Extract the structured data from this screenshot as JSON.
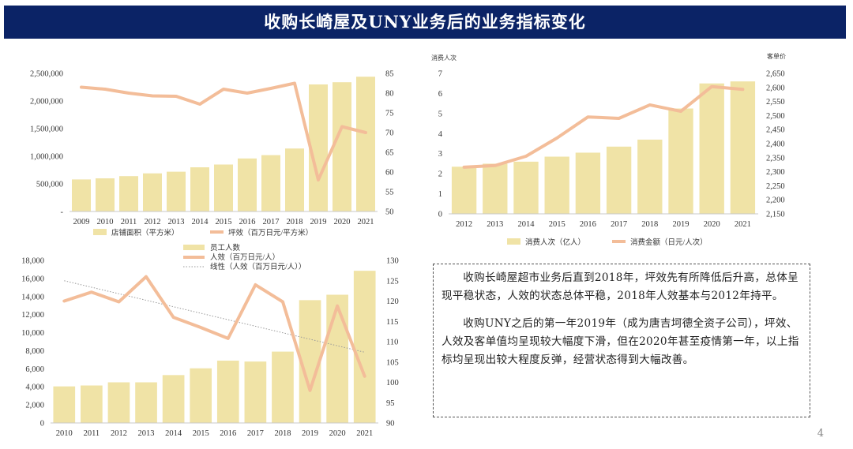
{
  "title": "收购长崎屋及UNY业务后的业务指标变化",
  "page_number": "4",
  "colors": {
    "bar": "#f0e3a6",
    "line": "#f3bd99",
    "trend": "#9a9a9a",
    "banner": "#0b2366"
  },
  "notes": [
    "收购长崎屋超市业务后直到2018年，坪效先有所降低后升高，总体呈现平稳状态，人效的状态总体平稳，2018年人效基本与2012年持平。",
    "收购UNY之后的第一年2019年（成为唐吉坷德全资子公司），坪效、人效及客单值均呈现较大幅度下滑，但在2020年甚至疫情第一年，以上指标均呈现出较大程度反弹，经营状态得到大幅改善。"
  ],
  "chart_data": [
    {
      "type": "bar+line",
      "categories": [
        "2009",
        "2010",
        "2011",
        "2012",
        "2013",
        "2014",
        "2015",
        "2016",
        "2017",
        "2018",
        "2019",
        "2020",
        "2021"
      ],
      "series": [
        {
          "name": "店铺面积（平方米）",
          "kind": "bar",
          "axis": "left",
          "values": [
            580000,
            600000,
            640000,
            690000,
            720000,
            800000,
            850000,
            960000,
            1020000,
            1140000,
            2300000,
            2340000,
            2440000
          ]
        },
        {
          "name": "坪效（百万日元/平方米）",
          "kind": "line",
          "axis": "right",
          "values": [
            81.5,
            81,
            80,
            79.3,
            79.2,
            77.2,
            81,
            80,
            81.2,
            82.5,
            58,
            71.5,
            70
          ]
        }
      ],
      "y_left": {
        "min": 0,
        "max": 2500000,
        "ticks": [
          0,
          500000,
          1000000,
          1500000,
          2000000,
          2500000
        ],
        "tick_labels": [
          "-",
          "500,000",
          "1,000,000",
          "1,500,000",
          "2,000,000",
          "2,500,000"
        ]
      },
      "y_right": {
        "min": 50,
        "max": 85,
        "ticks": [
          50,
          55,
          60,
          65,
          70,
          75,
          80,
          85
        ],
        "tick_labels": [
          "50",
          "55",
          "60",
          "65",
          "70",
          "75",
          "80",
          "85"
        ]
      },
      "legend": [
        "店铺面积（平方米）",
        "坪效（百万日元/平方米）"
      ],
      "legend_position": "bottom"
    },
    {
      "type": "bar+line",
      "categories": [
        "2012",
        "2013",
        "2014",
        "2015",
        "2016",
        "2017",
        "2018",
        "2019",
        "2020",
        "2021"
      ],
      "series": [
        {
          "name": "消费人次（亿人）",
          "kind": "bar",
          "axis": "left",
          "values": [
            2.35,
            2.5,
            2.6,
            2.85,
            3.05,
            3.35,
            3.7,
            5.25,
            6.5,
            6.6
          ]
        },
        {
          "name": "消费金额（日元/人次）",
          "kind": "line",
          "axis": "right",
          "values": [
            2316,
            2322,
            2355,
            2420,
            2495,
            2490,
            2538,
            2515,
            2603,
            2593
          ]
        }
      ],
      "y_left_title": "消费人次",
      "y_right_title": "客单价",
      "y_left": {
        "min": 0,
        "max": 7,
        "ticks": [
          0,
          1,
          2,
          3,
          4,
          5,
          6,
          7
        ],
        "tick_labels": [
          "0",
          "1",
          "2",
          "3",
          "4",
          "5",
          "6",
          "7"
        ]
      },
      "y_right": {
        "min": 2150,
        "max": 2650,
        "ticks": [
          2150,
          2200,
          2250,
          2300,
          2350,
          2400,
          2450,
          2500,
          2550,
          2600,
          2650
        ],
        "tick_labels": [
          "2,150",
          "2,200",
          "2,250",
          "2,300",
          "2,350",
          "2,400",
          "2,450",
          "2,500",
          "2,550",
          "2,600",
          "2,650"
        ]
      },
      "legend": [
        "消费人次（亿人）",
        "消费金额（日元/人次）"
      ],
      "legend_position": "bottom"
    },
    {
      "type": "bar+line",
      "categories": [
        "2010",
        "2011",
        "2012",
        "2013",
        "2014",
        "2015",
        "2016",
        "2017",
        "2018",
        "2019",
        "2020",
        "2021"
      ],
      "series": [
        {
          "name": "员工人数",
          "kind": "bar",
          "axis": "left",
          "values": [
            4050,
            4150,
            4500,
            4500,
            5300,
            6050,
            6900,
            6800,
            7900,
            13600,
            14200,
            16850
          ]
        },
        {
          "name": "人效（百万日元/人）",
          "kind": "line",
          "axis": "right",
          "values": [
            120,
            122.2,
            119.8,
            126,
            116,
            113.5,
            110.8,
            124,
            119.8,
            98,
            118.8,
            101.5
          ]
        },
        {
          "name": "线性（人效（百万日元/人））",
          "kind": "trend",
          "axis": "right",
          "values": [
            125,
            123.4,
            121.8,
            120.2,
            118.6,
            117,
            115.4,
            113.8,
            112.2,
            110.6,
            109,
            107.4
          ]
        }
      ],
      "y_left": {
        "min": 0,
        "max": 18000,
        "ticks": [
          0,
          2000,
          4000,
          6000,
          8000,
          10000,
          12000,
          14000,
          16000,
          18000
        ],
        "tick_labels": [
          "0",
          "2,000",
          "4,000",
          "6,000",
          "8,000",
          "10,000",
          "12,000",
          "14,000",
          "16,000",
          "18,000"
        ]
      },
      "y_right": {
        "min": 90,
        "max": 130,
        "ticks": [
          90,
          95,
          100,
          105,
          110,
          115,
          120,
          125,
          130
        ],
        "tick_labels": [
          "90",
          "95",
          "100",
          "105",
          "110",
          "115",
          "120",
          "125",
          "130"
        ]
      },
      "legend": [
        "员工人数",
        "人效（百万日元/人）",
        "线性（人效（百万日元/人））"
      ],
      "legend_position": "top"
    }
  ]
}
